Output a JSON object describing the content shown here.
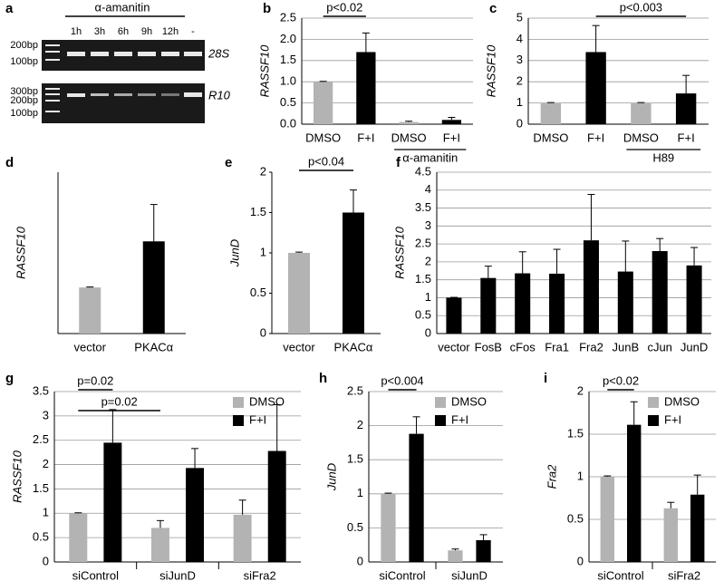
{
  "gel": {
    "panel": "a",
    "treatment": "α-amanitin",
    "lanes": [
      "1h",
      "3h",
      "6h",
      "9h",
      "12h",
      "-"
    ],
    "gels": [
      {
        "markers": [
          "200bp",
          "100bp"
        ],
        "target": "28S"
      },
      {
        "markers": [
          "300bp",
          "200bp",
          "100bp"
        ],
        "target": "R10"
      }
    ]
  },
  "chart_data": [
    {
      "type": "bar",
      "panel": "b",
      "ylabel": "RASSF10",
      "categories": [
        "DMSO",
        "F+I",
        "DMSO",
        "F+I"
      ],
      "values": [
        1.0,
        1.7,
        0.05,
        0.1
      ],
      "errors": [
        0.01,
        0.45,
        0.02,
        0.06
      ],
      "colors": [
        "#b3b3b3",
        "#000000",
        "#b3b3b3",
        "#000000"
      ],
      "ylim": [
        0,
        2.5
      ],
      "yticks": [
        {
          "value": 0,
          "label": "0.0"
        },
        0.5,
        {
          "value": 1,
          "label": "1.0"
        },
        1.5,
        {
          "value": 2,
          "label": "2.0"
        },
        2.5
      ],
      "grid": true,
      "groups": [
        {
          "label": "α-amanitin",
          "from": 2,
          "to": 3
        }
      ],
      "annotations": [
        {
          "text": "p<0.02",
          "from": 0,
          "to": 1
        }
      ]
    },
    {
      "type": "bar",
      "panel": "c",
      "ylabel": "RASSF10",
      "categories": [
        "DMSO",
        "F+I",
        "DMSO",
        "F+I"
      ],
      "values": [
        1,
        3.4,
        1,
        1.45
      ],
      "errors": [
        0.02,
        1.25,
        0.02,
        0.85
      ],
      "colors": [
        "#b3b3b3",
        "#000000",
        "#b3b3b3",
        "#000000"
      ],
      "ylim": [
        0,
        5
      ],
      "yticks": [
        0,
        1,
        2,
        3,
        4,
        5
      ],
      "grid": true,
      "groups": [
        {
          "label": "H89",
          "from": 2,
          "to": 3
        }
      ],
      "annotations": [
        {
          "text": "p<0.003",
          "from": 1,
          "to": 3
        }
      ]
    },
    {
      "type": "bar",
      "panel": "d",
      "ylabel": "RASSF10",
      "categories": [
        "vector",
        "PKACα"
      ],
      "values": [
        1,
        2
      ],
      "errors": [
        0.01,
        0.8
      ],
      "colors": [
        "#b3b3b3",
        "#000000"
      ],
      "ylim": [
        0,
        3.5
      ],
      "grid": false
    },
    {
      "type": "bar",
      "panel": "e",
      "ylabel": "JunD",
      "categories": [
        "vector",
        "PKACα"
      ],
      "values": [
        1,
        1.5
      ],
      "errors": [
        0.01,
        0.28
      ],
      "colors": [
        "#b3b3b3",
        "#000000"
      ],
      "ylim": [
        0,
        2
      ],
      "yticks": [
        0,
        0.5,
        1,
        1.5,
        2
      ],
      "grid": false,
      "annotations": [
        {
          "text": "p<0.04",
          "from": 0,
          "to": 1
        }
      ]
    },
    {
      "type": "bar",
      "panel": "f",
      "ylabel": "RASSF10",
      "categories": [
        "vector",
        "FosB",
        "cFos",
        "Fra1",
        "Fra2",
        "JunB",
        "cJun",
        "JunD"
      ],
      "values": [
        1,
        1.55,
        1.68,
        1.67,
        2.6,
        1.73,
        2.3,
        1.9
      ],
      "errors": [
        0.01,
        0.33,
        0.6,
        0.68,
        1.28,
        0.85,
        0.35,
        0.5
      ],
      "colors": [
        "#000000",
        "#000000",
        "#000000",
        "#000000",
        "#000000",
        "#000000",
        "#000000",
        "#000000"
      ],
      "ylim": [
        0,
        4.5
      ],
      "yticks": [
        0,
        0.5,
        1,
        1.5,
        2,
        2.5,
        3,
        3.5,
        4,
        4.5
      ],
      "grid": true
    },
    {
      "type": "grouped_bar",
      "panel": "g",
      "ylabel": "RASSF10",
      "categories": [
        "siControl",
        "siJunD",
        "siFra2"
      ],
      "series": [
        {
          "name": "DMSO",
          "color": "#b3b3b3",
          "values": [
            1,
            0.7,
            0.97
          ],
          "errors": [
            0.01,
            0.15,
            0.3
          ]
        },
        {
          "name": "F+I",
          "color": "#000000",
          "values": [
            2.45,
            1.93,
            2.28
          ],
          "errors": [
            0.68,
            0.4,
            0.95
          ]
        }
      ],
      "ylim": [
        0,
        3.5
      ],
      "yticks": [
        0,
        0.5,
        1,
        1.5,
        2,
        2.5,
        3,
        3.5
      ],
      "grid": true,
      "legend": "upper right",
      "annotations": [
        {
          "text": "p=0.02",
          "from": [
            0,
            0
          ],
          "to": [
            1,
            0
          ]
        },
        {
          "text": "p=0.02",
          "from": [
            0,
            0
          ],
          "to": [
            0,
            1
          ]
        }
      ]
    },
    {
      "type": "grouped_bar",
      "panel": "h",
      "ylabel": "JunD",
      "categories": [
        "siControl",
        "siJunD"
      ],
      "series": [
        {
          "name": "DMSO",
          "color": "#b3b3b3",
          "values": [
            1,
            0.17
          ],
          "errors": [
            0.01,
            0.02
          ]
        },
        {
          "name": "F+I",
          "color": "#000000",
          "values": [
            1.88,
            0.32
          ],
          "errors": [
            0.25,
            0.08
          ]
        }
      ],
      "ylim": [
        0,
        2.5
      ],
      "yticks": [
        0,
        0.5,
        1,
        1.5,
        2,
        2.5
      ],
      "grid": true,
      "legend": "upper right",
      "annotations": [
        {
          "text": "p<0.004",
          "from": [
            0,
            0
          ],
          "to": [
            1,
            0
          ]
        }
      ]
    },
    {
      "type": "grouped_bar",
      "panel": "i",
      "ylabel": "Fra2",
      "categories": [
        "siControl",
        "siFra2"
      ],
      "series": [
        {
          "name": "DMSO",
          "color": "#b3b3b3",
          "values": [
            1,
            0.63
          ],
          "errors": [
            0.01,
            0.07
          ]
        },
        {
          "name": "F+I",
          "color": "#000000",
          "values": [
            1.61,
            0.79
          ],
          "errors": [
            0.27,
            0.23
          ]
        }
      ],
      "ylim": [
        0,
        2
      ],
      "yticks": [
        0,
        0.5,
        1,
        1.5,
        2
      ],
      "grid": true,
      "legend": "upper right",
      "annotations": [
        {
          "text": "p<0.02",
          "from": [
            0,
            0
          ],
          "to": [
            1,
            0
          ]
        }
      ]
    }
  ]
}
